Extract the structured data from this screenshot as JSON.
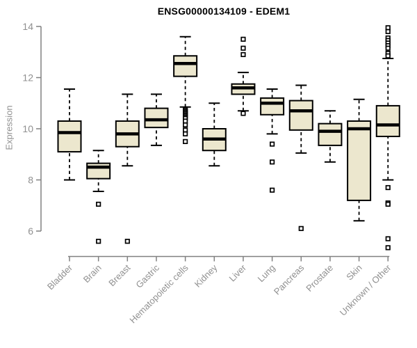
{
  "chart_data": {
    "type": "boxplot",
    "title": "ENSG00000134109 - EDEM1",
    "ylabel": "Expression",
    "xlabel": "",
    "ylim": [
      5.2,
      14
    ],
    "yticks": [
      6,
      8,
      10,
      12,
      14
    ],
    "grid": false,
    "legend": "none",
    "box_fill": "#ECE7CE",
    "box_border": "#000000",
    "axis_color": "#808080",
    "tick_label_color": "#909090",
    "categories": [
      "Bladder",
      "Brain",
      "Breast",
      "Gastric",
      "Hematopoietic cells",
      "Kidney",
      "Liver",
      "Lung",
      "Pancreas",
      "Prostate",
      "Skin",
      "Unknown / Other"
    ],
    "series": [
      {
        "category": "Bladder",
        "low": 8.0,
        "q1": 9.1,
        "median": 9.85,
        "q3": 10.3,
        "high": 11.55,
        "outliers": []
      },
      {
        "category": "Brain",
        "low": 7.55,
        "q1": 8.05,
        "median": 8.5,
        "q3": 8.65,
        "high": 9.15,
        "outliers": [
          7.05,
          5.6
        ]
      },
      {
        "category": "Breast",
        "low": 8.55,
        "q1": 9.3,
        "median": 9.8,
        "q3": 10.3,
        "high": 11.35,
        "outliers": [
          5.6
        ]
      },
      {
        "category": "Gastric",
        "low": 9.35,
        "q1": 10.05,
        "median": 10.35,
        "q3": 10.8,
        "high": 11.35,
        "outliers": []
      },
      {
        "category": "Hematopoietic cells",
        "low": 10.85,
        "q1": 12.05,
        "median": 12.55,
        "q3": 12.85,
        "high": 13.6,
        "outliers": [
          10.75,
          10.7,
          10.65,
          10.6,
          10.55,
          10.5,
          10.45,
          10.4,
          10.3,
          10.15,
          9.95,
          9.8,
          9.5
        ]
      },
      {
        "category": "Kidney",
        "low": 8.55,
        "q1": 9.15,
        "median": 9.6,
        "q3": 10.0,
        "high": 11.0,
        "outliers": []
      },
      {
        "category": "Liver",
        "low": 10.7,
        "q1": 11.35,
        "median": 11.6,
        "q3": 11.75,
        "high": 12.2,
        "outliers": [
          13.5,
          13.15,
          12.9,
          10.6
        ]
      },
      {
        "category": "Lung",
        "low": 9.8,
        "q1": 10.55,
        "median": 11.0,
        "q3": 11.2,
        "high": 11.55,
        "outliers": [
          9.4,
          8.7,
          7.6
        ]
      },
      {
        "category": "Pancreas",
        "low": 9.05,
        "q1": 9.95,
        "median": 10.7,
        "q3": 11.1,
        "high": 11.7,
        "outliers": [
          6.1
        ]
      },
      {
        "category": "Prostate",
        "low": 8.7,
        "q1": 9.35,
        "median": 9.9,
        "q3": 10.2,
        "high": 10.7,
        "outliers": []
      },
      {
        "category": "Skin",
        "low": 6.4,
        "q1": 7.2,
        "median": 10.0,
        "q3": 10.3,
        "high": 11.15,
        "outliers": []
      },
      {
        "category": "Unknown / Other",
        "low": 8.0,
        "q1": 9.7,
        "median": 10.15,
        "q3": 10.9,
        "high": 12.75,
        "outliers": [
          13.95,
          13.8,
          13.55,
          13.45,
          13.35,
          13.25,
          13.15,
          12.95,
          12.85,
          7.7,
          7.1,
          7.05,
          5.7,
          5.35
        ]
      }
    ]
  }
}
